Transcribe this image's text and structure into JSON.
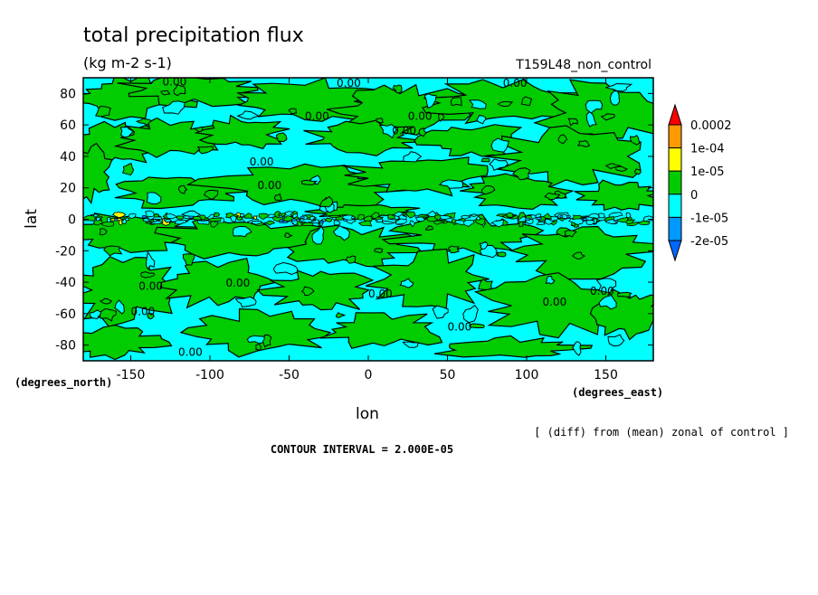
{
  "chart_data": {
    "type": "heatmap",
    "title": "total precipitation flux",
    "units": "(kg m-2 s-1)",
    "run_label": "T159L48_non_control",
    "xlabel": "lon",
    "ylabel": "lat",
    "x_unit_label": "(degrees_east)",
    "y_unit_label": "(degrees_north)",
    "xlim": [
      -180,
      180
    ],
    "ylim": [
      -90,
      90
    ],
    "x_ticks": [
      -150,
      -100,
      -50,
      0,
      50,
      100,
      150
    ],
    "y_ticks": [
      80,
      60,
      40,
      20,
      0,
      -20,
      -40,
      -60,
      -80
    ],
    "contour_label": "0.00",
    "legend": {
      "placement": "right",
      "levels": [
        "0.0002",
        "1e-04",
        "1e-05",
        "0",
        "-1e-05",
        "-2e-05"
      ],
      "colors": {
        "above_0.0002": "#ff0000",
        "1e-04_to_0.0002": "#ff9900",
        "1e-05_to_1e-04": "#ffff00",
        "0_to_1e-05": "#00cc00",
        "-1e-05_to_0": "#00ffff",
        "-2e-05_to_-1e-05": "#0099ff",
        "below_-2e-05": "#0066ff"
      }
    },
    "note": "[ (diff) from (mean) zonal of control ]",
    "contour_interval": "CONTOUR INTERVAL = 2.000E-05"
  }
}
